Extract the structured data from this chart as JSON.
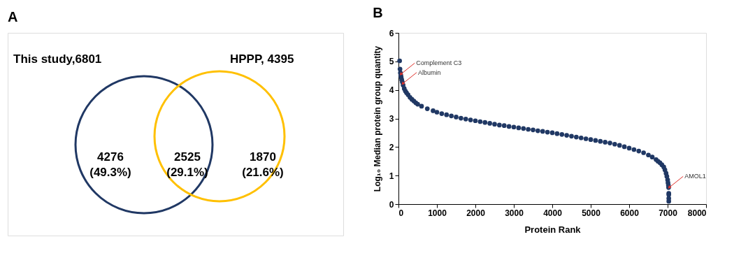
{
  "chart_data": [
    {
      "type": "other",
      "title": "A",
      "categories": [
        "This study,6801",
        "HPPP, 4395"
      ],
      "colors": [
        "#203864",
        "#ffc000"
      ],
      "annotations": [
        "4276\n(49.3%)",
        "2525\n(29.1%)",
        "1870\n(21.6%)"
      ]
    },
    {
      "type": "scatter",
      "title": "B",
      "xlabel": "Protein Rank",
      "ylabel": "Log₁₀ Median protein group quantity",
      "xlim": [
        0,
        8000
      ],
      "xticks": [
        0,
        1000,
        2000,
        3000,
        4000,
        5000,
        6000,
        7000,
        8000
      ],
      "ylim": [
        0,
        6
      ],
      "yticks": [
        0,
        1,
        2,
        3,
        4,
        5,
        6
      ],
      "grid": false,
      "marker": "circle",
      "series": [
        {
          "color": "#203864",
          "x": [
            30,
            40,
            50,
            60,
            70,
            85,
            100,
            120,
            150,
            180,
            210,
            250,
            300,
            350,
            400,
            450,
            500,
            600,
            750,
            900,
            1000,
            1125,
            1250,
            1375,
            1500,
            1625,
            1750,
            1875,
            2000,
            2125,
            2250,
            2375,
            2500,
            2625,
            2750,
            2875,
            3000,
            3125,
            3250,
            3375,
            3500,
            3625,
            3750,
            3875,
            4000,
            4125,
            4250,
            4375,
            4500,
            4625,
            4750,
            4875,
            5000,
            5125,
            5250,
            5375,
            5500,
            5625,
            5750,
            5875,
            6000,
            6125,
            6250,
            6375,
            6500,
            6600,
            6700,
            6750,
            6800,
            6850,
            6900,
            6930,
            6960,
            6980,
            7000,
            7010,
            7020,
            7025,
            7030,
            7030,
            7030,
            7030
          ],
          "values": [
            5.02,
            4.73,
            4.6,
            4.52,
            4.45,
            4.36,
            4.28,
            4.17,
            4.05,
            3.96,
            3.9,
            3.83,
            3.74,
            3.67,
            3.61,
            3.55,
            3.5,
            3.43,
            3.34,
            3.27,
            3.22,
            3.17,
            3.13,
            3.09,
            3.05,
            3.01,
            2.98,
            2.95,
            2.92,
            2.89,
            2.86,
            2.83,
            2.8,
            2.77,
            2.75,
            2.72,
            2.7,
            2.67,
            2.65,
            2.62,
            2.6,
            2.57,
            2.55,
            2.52,
            2.5,
            2.47,
            2.44,
            2.41,
            2.38,
            2.35,
            2.32,
            2.29,
            2.26,
            2.23,
            2.2,
            2.17,
            2.14,
            2.1,
            2.06,
            2.01,
            1.96,
            1.91,
            1.86,
            1.8,
            1.72,
            1.65,
            1.56,
            1.5,
            1.45,
            1.38,
            1.3,
            1.2,
            1.08,
            0.97,
            0.85,
            0.75,
            0.66,
            0.58,
            0.38,
            0.33,
            0.2,
            0.1
          ]
        }
      ],
      "annotations": [
        {
          "text": "Complement C3",
          "x": 60,
          "y": 4.55
        },
        {
          "text": "Albumin",
          "x": 110,
          "y": 4.22
        },
        {
          "text": "AMOL1",
          "x": 7040,
          "y": 0.58
        }
      ]
    }
  ]
}
